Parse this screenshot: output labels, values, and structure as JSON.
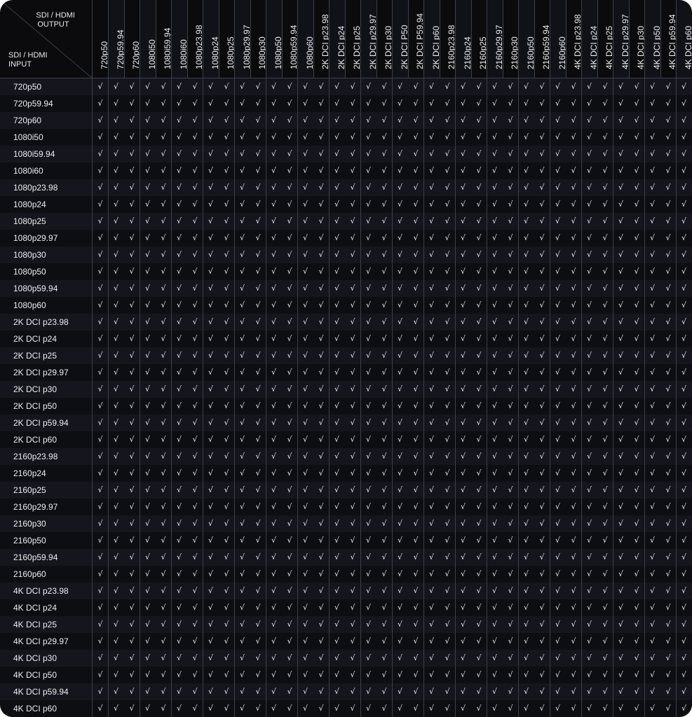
{
  "header": {
    "output_label": [
      "SDI / HDMI",
      "OUTPUT"
    ],
    "input_label": [
      "SDI / HDMI",
      "INPUT"
    ]
  },
  "check_mark": "√",
  "outputs": [
    "720p50",
    "720p59.94",
    "720p60",
    "1080i50",
    "1080i59.94",
    "1080i60",
    "1080p23.98",
    "1080p24",
    "1080p25",
    "1080p29.97",
    "1080p30",
    "1080p50",
    "1080p59.94",
    "1080p60",
    "2K DCI p23.98",
    "2K DCI p24",
    "2K DCI p25",
    "2K DCI p29.97",
    "2K DCI p30",
    "2K DCI P50",
    "2K DCI P59.94",
    "2K DCI p60",
    "2160p23.98",
    "2160p24",
    "2160p25",
    "2160p29.97",
    "2160p30",
    "2160p50",
    "2160p59.94",
    "2160p60",
    "4K DCI p23.98",
    "4K DCI p24",
    "4K DCI p25",
    "4K DCI p29.97",
    "4K DCI p30",
    "4K DCI p50",
    "4K DCI p59.94",
    "4K DCI p60"
  ],
  "inputs": [
    "720p50",
    "720p59.94",
    "720p60",
    "1080i50",
    "1080i59.94",
    "1080i60",
    "1080p23.98",
    "1080p24",
    "1080p25",
    "1080p29.97",
    "1080p30",
    "1080p50",
    "1080p59.94",
    "1080p60",
    "2K DCI p23.98",
    "2K DCI p24",
    "2K DCI p25",
    "2K DCI p29.97",
    "2K DCI p30",
    "2K DCI p50",
    "2K DCI p59.94",
    "2K DCI p60",
    "2160p23.98",
    "2160p24",
    "2160p25",
    "2160p29.97",
    "2160p30",
    "2160p50",
    "2160p59.94",
    "2160p60",
    "4K DCI p23.98",
    "4K DCI p24",
    "4K DCI p25",
    "4K DCI p29.97",
    "4K DCI p30",
    "4K DCI p50",
    "4K DCI p59.94",
    "4K DCI p60"
  ],
  "colors": {
    "background": "#0b0b0e",
    "row_even": "#15161d",
    "row_odd": "#0d0e12",
    "grid": "#3c3f4a",
    "text": "#ececf0"
  }
}
